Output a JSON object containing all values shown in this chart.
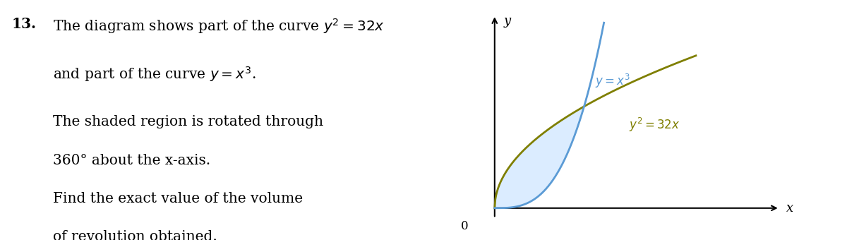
{
  "fig_width": 12.0,
  "fig_height": 3.4,
  "dpi": 100,
  "bg_color": "#ffffff",
  "question_number": "13.",
  "line3": "The shaded region is rotated through",
  "line4": "360° about the x-axis.",
  "line5": "Find the exact value of the volume",
  "line6": "of revolution obtained.",
  "curve_cubic_color": "#5b9bd5",
  "curve_parab_color": "#7f7f00",
  "shade_color": "#cce5ff",
  "shade_alpha": 0.7,
  "axis_color": "#000000",
  "origin_label": "0",
  "x_label": "x",
  "y_label": "y"
}
